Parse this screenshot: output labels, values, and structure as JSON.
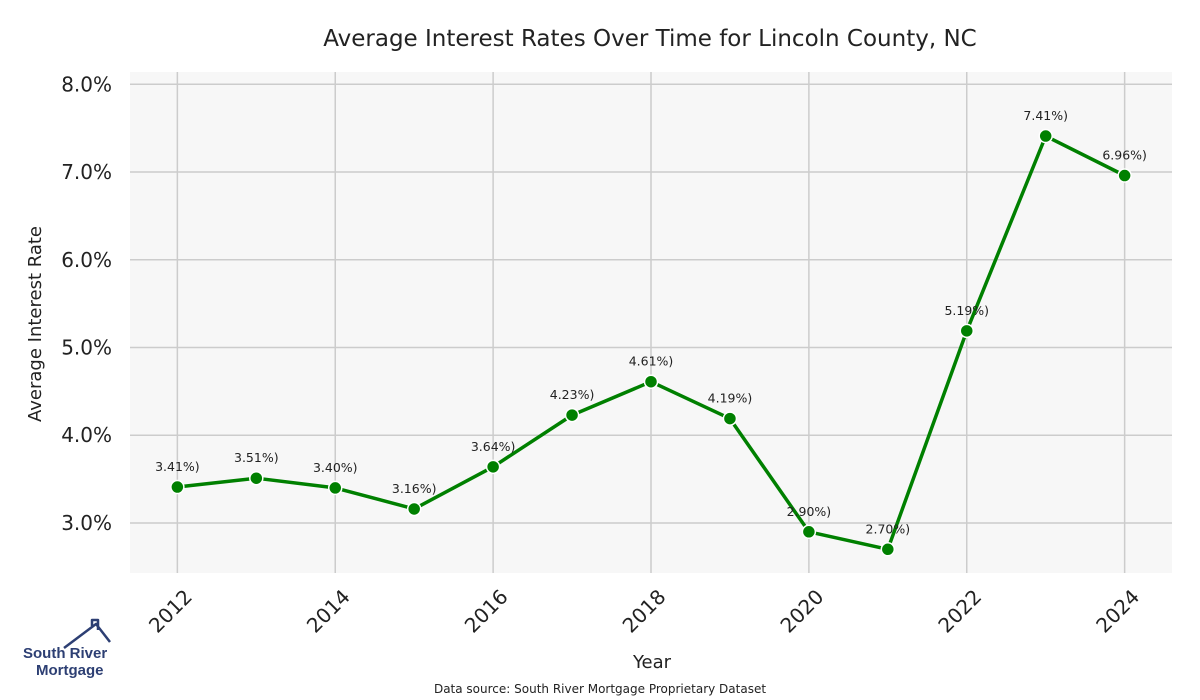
{
  "chart_data": {
    "type": "line",
    "title": "Average Interest Rates Over Time for Lincoln County, NC",
    "xlabel": "Year",
    "ylabel": "Average Interest Rate",
    "x": [
      2012,
      2013,
      2014,
      2015,
      2016,
      2017,
      2018,
      2019,
      2020,
      2021,
      2022,
      2023,
      2024
    ],
    "values": [
      3.41,
      3.51,
      3.4,
      3.16,
      3.64,
      4.23,
      4.61,
      4.19,
      2.9,
      2.7,
      5.19,
      7.41,
      6.96
    ],
    "data_labels": [
      "3.41%)",
      "3.51%)",
      "3.40%)",
      "3.16%)",
      "3.64%)",
      "4.23%)",
      "4.61%)",
      "4.19%)",
      "2.90%)",
      "2.70%)",
      "5.19%)",
      "7.41%)",
      "6.96%)"
    ],
    "x_ticks": [
      "2012",
      "2014",
      "2016",
      "2018",
      "2020",
      "2022",
      "2024"
    ],
    "y_ticks": [
      "3.0%",
      "4.0%",
      "5.0%",
      "6.0%",
      "7.0%",
      "8.0%"
    ],
    "y_tick_values": [
      3,
      4,
      5,
      6,
      7,
      8
    ],
    "ylim": [
      2.43,
      8.14
    ],
    "xlim": [
      2011.4,
      2024.6
    ],
    "grid": true,
    "line_color": "#008000",
    "background_color": "#f7f7f7",
    "grid_color": "#cccccc"
  },
  "source_note": "Data source: South River Mortgage Proprietary Dataset",
  "logo": {
    "line1": "South River",
    "line2": "Mortgage",
    "icon": "house-roof-icon",
    "color": "#2d3f73"
  }
}
